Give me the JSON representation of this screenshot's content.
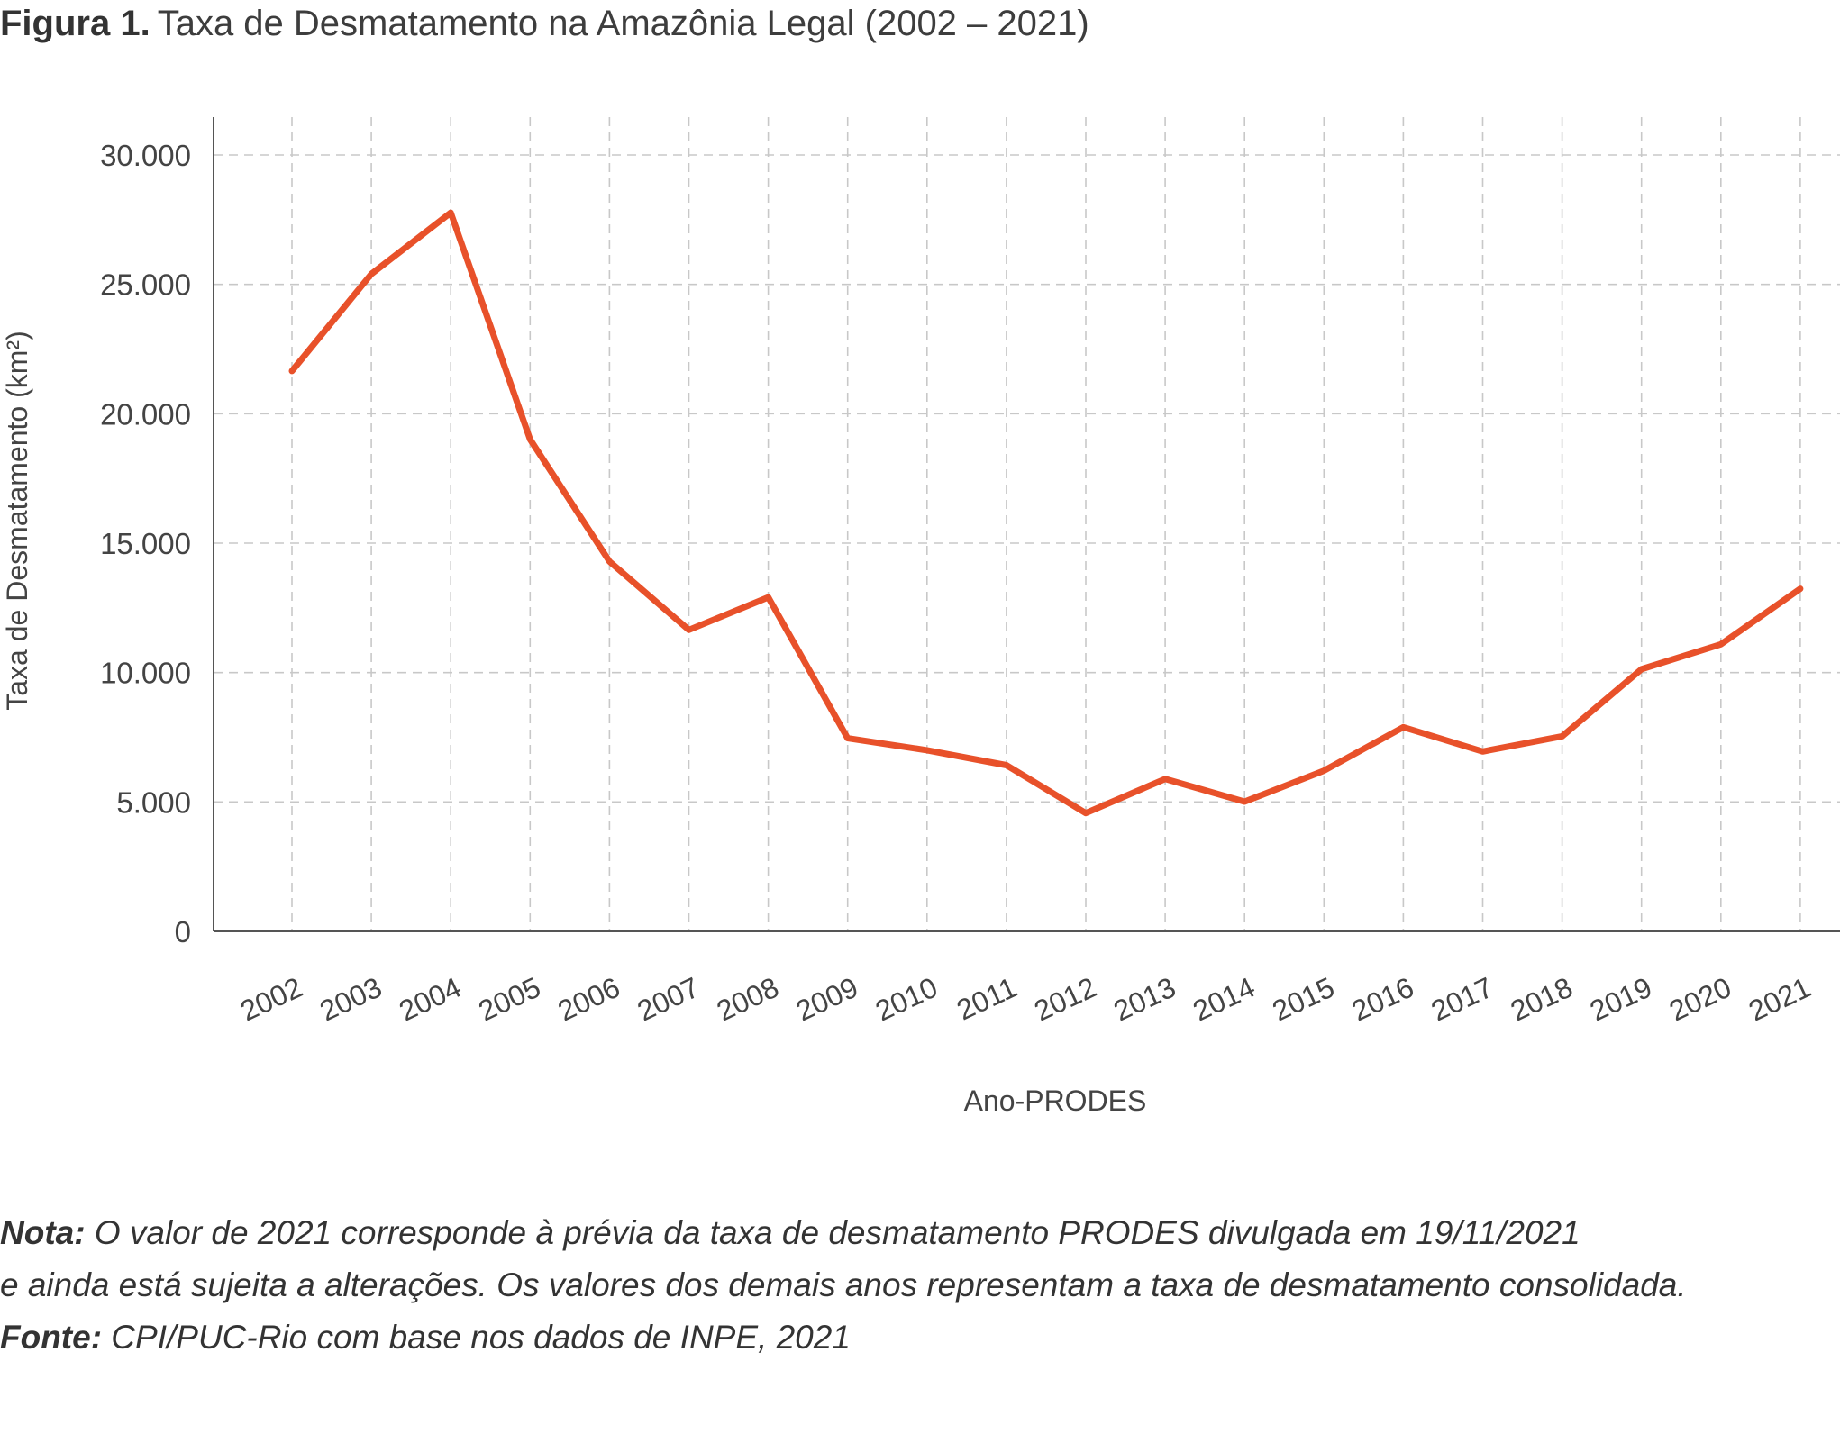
{
  "figure": {
    "label": "Figura 1.",
    "title": "Taxa de Desmatamento na Amazônia Legal (2002 – 2021)"
  },
  "chart_data": {
    "type": "line",
    "xlabel": "Ano-PRODES",
    "ylabel": "Taxa de Desmatamento (km²)",
    "ylim": [
      0,
      30000
    ],
    "y_ticks": [
      "0",
      "5.000",
      "10.000",
      "15.000",
      "20.000",
      "25.000",
      "30.000"
    ],
    "y_tick_values": [
      0,
      5000,
      10000,
      15000,
      20000,
      25000,
      30000
    ],
    "grid": true,
    "categories": [
      "2002",
      "2003",
      "2004",
      "2005",
      "2006",
      "2007",
      "2008",
      "2009",
      "2010",
      "2011",
      "2012",
      "2013",
      "2014",
      "2015",
      "2016",
      "2017",
      "2018",
      "2019",
      "2020",
      "2021"
    ],
    "series": [
      {
        "values": [
          21650,
          25400,
          27770,
          19010,
          14290,
          11650,
          12910,
          7460,
          7000,
          6420,
          4570,
          5890,
          5010,
          6210,
          7890,
          6950,
          7540,
          10130,
          11090,
          13240
        ],
        "color": "#e8512a"
      }
    ]
  },
  "notes": {
    "nota_label": "Nota:",
    "nota_text": " O valor de 2021 corresponde à prévia da taxa de desmatamento PRODES divulgada em 19/11/2021",
    "nota_text_2": "e ainda está sujeita a alterações. Os valores dos demais anos representam a taxa de desmatamento consolidada.",
    "fonte_label": "Fonte:",
    "fonte_text": " CPI/PUC-Rio com base nos dados de INPE, 2021"
  }
}
